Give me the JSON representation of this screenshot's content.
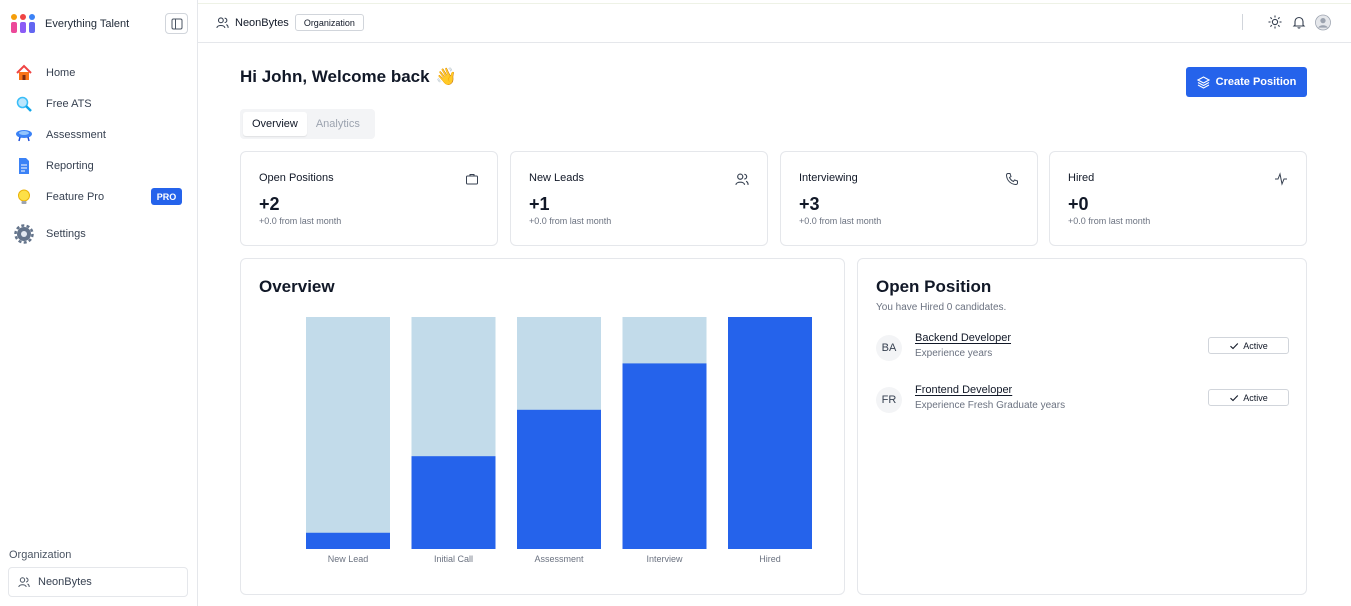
{
  "sidebar": {
    "brand": "Everything Talent",
    "items": [
      {
        "label": "Home",
        "icon": "home-icon"
      },
      {
        "label": "Free ATS",
        "icon": "magnifier-icon"
      },
      {
        "label": "Assessment",
        "icon": "assessment-icon"
      },
      {
        "label": "Reporting",
        "icon": "report-icon"
      },
      {
        "label": "Feature Pro",
        "icon": "lightbulb-icon",
        "badge": "PRO"
      },
      {
        "label": "Settings",
        "icon": "gear-icon"
      }
    ],
    "org_label": "Organization",
    "org_name": "NeonBytes"
  },
  "header": {
    "org_name": "NeonBytes",
    "org_badge": "Organization"
  },
  "main": {
    "greeting": "Hi John, Welcome back",
    "greeting_emoji": "👋",
    "create_button": "Create Position",
    "tabs": [
      {
        "label": "Overview",
        "active": true
      },
      {
        "label": "Analytics",
        "active": false
      }
    ],
    "stats": [
      {
        "title": "Open Positions",
        "value": "+2",
        "sub": "+0.0 from last month",
        "icon": "briefcase-icon"
      },
      {
        "title": "New Leads",
        "value": "+1",
        "sub": "+0.0 from last month",
        "icon": "users-icon"
      },
      {
        "title": "Interviewing",
        "value": "+3",
        "sub": "+0.0 from last month",
        "icon": "phone-icon"
      },
      {
        "title": "Hired",
        "value": "+0",
        "sub": "+0.0 from last month",
        "icon": "activity-icon"
      }
    ],
    "overview_title": "Overview",
    "open_position": {
      "title": "Open Position",
      "description": "You have Hired 0 candidates.",
      "rows": [
        {
          "initials": "BA",
          "title": "Backend Developer",
          "sub": "Experience years",
          "status": "Active"
        },
        {
          "initials": "FR",
          "title": "Frontend Developer",
          "sub": "Experience Fresh Graduate years",
          "status": "Active"
        }
      ]
    }
  },
  "colors": {
    "accent": "#2563eb",
    "bar_bg": "#c2dbea",
    "bar_fill": "#2563eb"
  },
  "chart_data": {
    "type": "bar",
    "categories": [
      "New Lead",
      "Initial Call",
      "Assessment",
      "Interview",
      "Hired"
    ],
    "values": [
      0.07,
      0.4,
      0.6,
      0.8,
      1.0
    ],
    "ylim": [
      0,
      1
    ],
    "grid": false
  }
}
